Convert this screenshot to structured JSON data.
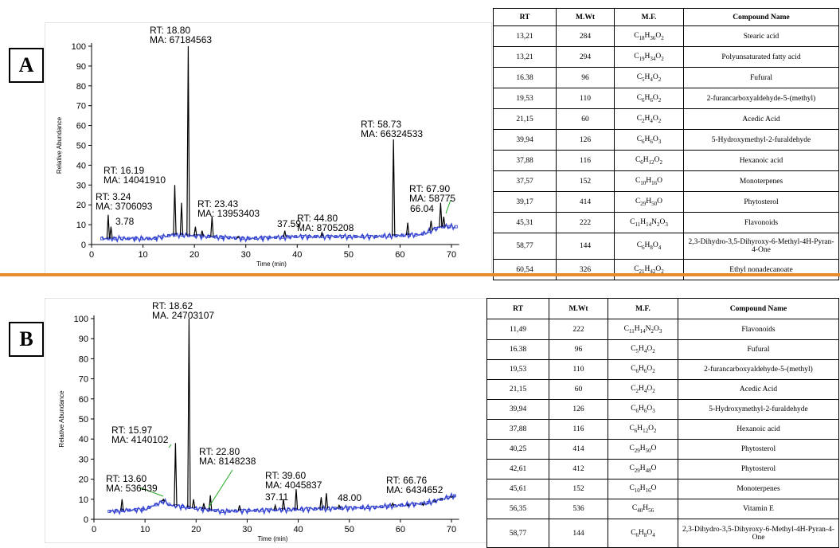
{
  "colors": {
    "trace": "#000000",
    "baseline_marker": "#2233cc",
    "annotation_line": "#22aa22",
    "divider": "#e88a2e"
  },
  "table_headers": [
    "RT",
    "M.Wt",
    "M.F.",
    "Compound Name"
  ],
  "panels": [
    {
      "label": "A",
      "ylabel": "Relative Abundance",
      "xlabel": "Time (min)",
      "xticks": [
        "0",
        "10",
        "20",
        "30",
        "40",
        "50",
        "60",
        "70"
      ],
      "yticks": [
        "0",
        "10",
        "20",
        "30",
        "40",
        "50",
        "60",
        "70",
        "80",
        "90",
        "100"
      ],
      "annotations": [
        {
          "lines": [
            "RT: 18.80",
            "MA: 67184563"
          ]
        },
        {
          "lines": [
            "RT: 58.73",
            "MA: 66324533"
          ]
        },
        {
          "lines": [
            "RT: 16.19",
            "MA: 14041910"
          ]
        },
        {
          "lines": [
            "RT: 67.90",
            "MA: 58775"
          ]
        },
        {
          "lines": [
            "RT: 3.24",
            "MA: 3706093"
          ]
        },
        {
          "lines": [
            "RT: 23.43",
            "MA: 13953403"
          ]
        },
        {
          "lines": [
            "RT: 44.80",
            "MA: 8705208"
          ]
        },
        {
          "lines": [
            "66.04"
          ]
        },
        {
          "lines": [
            "3.78"
          ]
        },
        {
          "lines": [
            "37.59"
          ]
        }
      ],
      "table": [
        {
          "rt": "13,21",
          "mw": "284",
          "mf": [
            [
              "C",
              "18"
            ],
            [
              "H",
              "36"
            ],
            [
              "O",
              "2"
            ]
          ],
          "name": "Stearic acid"
        },
        {
          "rt": "13,21",
          "mw": "294",
          "mf": [
            [
              "C",
              "19"
            ],
            [
              "H",
              "34"
            ],
            [
              "O",
              "2"
            ]
          ],
          "name": "Polyunsaturated fatty acid"
        },
        {
          "rt": "16.38",
          "mw": "96",
          "mf": [
            [
              "C",
              "5"
            ],
            [
              "H",
              "4"
            ],
            [
              "O",
              "2"
            ]
          ],
          "name": "Fufural"
        },
        {
          "rt": "19,53",
          "mw": "110",
          "mf": [
            [
              "C",
              "6"
            ],
            [
              "H",
              "6"
            ],
            [
              "O",
              "2"
            ]
          ],
          "name": "2-furancarboxyaldehyde-5-(methyl)"
        },
        {
          "rt": "21,15",
          "mw": "60",
          "mf": [
            [
              "C",
              "2"
            ],
            [
              "H",
              "4"
            ],
            [
              "O",
              "2"
            ]
          ],
          "name": "Acedic Acid"
        },
        {
          "rt": "39,94",
          "mw": "126",
          "mf": [
            [
              "C",
              "6"
            ],
            [
              "H",
              "6"
            ],
            [
              "O",
              "3"
            ]
          ],
          "name": "5-Hydroxymethyl-2-furaldehyde"
        },
        {
          "rt": "37,88",
          "mw": "116",
          "mf": [
            [
              "C",
              "6"
            ],
            [
              "H",
              "12"
            ],
            [
              "O",
              "2"
            ]
          ],
          "name": "Hexanoic acid"
        },
        {
          "rt": "37,57",
          "mw": "152",
          "mf": [
            [
              "C",
              "10"
            ],
            [
              "H",
              "16"
            ],
            [
              "O",
              ""
            ]
          ],
          "name": "Monoterpenes"
        },
        {
          "rt": "39,17",
          "mw": "414",
          "mf": [
            [
              "C",
              "29"
            ],
            [
              "H",
              "50"
            ],
            [
              "O",
              ""
            ]
          ],
          "name": "Phytosterol"
        },
        {
          "rt": "45,31",
          "mw": "222",
          "mf": [
            [
              "C",
              "11"
            ],
            [
              "H",
              "14"
            ],
            [
              "N",
              "2"
            ],
            [
              "O",
              "3"
            ]
          ],
          "name": "Flavonoids"
        },
        {
          "rt": "58,77",
          "mw": "144",
          "mf": [
            [
              "C",
              "6"
            ],
            [
              "H",
              "8"
            ],
            [
              "O",
              "4"
            ]
          ],
          "name": "2,3-Dihydro-3,5-Dihyroxy-6-Methyl-4H-Pyran-4-One"
        },
        {
          "rt": "60,54",
          "mw": "326",
          "mf": [
            [
              "C",
              "21"
            ],
            [
              "H",
              "42"
            ],
            [
              "O",
              "2"
            ]
          ],
          "name": "Ethyl nonadecanoate"
        }
      ]
    },
    {
      "label": "B",
      "ylabel": "Relative Abundance",
      "xlabel": "Time (min)",
      "xticks": [
        "0",
        "10",
        "20",
        "30",
        "40",
        "50",
        "60",
        "70"
      ],
      "yticks": [
        "0",
        "10",
        "20",
        "30",
        "40",
        "50",
        "60",
        "70",
        "80",
        "90",
        "100"
      ],
      "annotations": [
        {
          "lines": [
            "RT: 18.62",
            "MA. 24703107"
          ]
        },
        {
          "lines": [
            "RT: 15.97",
            "MA: 4140102"
          ]
        },
        {
          "lines": [
            "RT: 22.80",
            "MA: 8148238"
          ]
        },
        {
          "lines": [
            "RT: 39.60",
            "MA: 4045837"
          ]
        },
        {
          "lines": [
            "RT: 13.60",
            "MA: 536439"
          ]
        },
        {
          "lines": [
            "RT: 66.76",
            "MA: 6434652"
          ]
        },
        {
          "lines": [
            "37.11"
          ]
        },
        {
          "lines": [
            "48.00"
          ]
        }
      ],
      "table": [
        {
          "rt": "11,49",
          "mw": "222",
          "mf": [
            [
              "C",
              "11"
            ],
            [
              "H",
              "14"
            ],
            [
              "N",
              "2"
            ],
            [
              "O",
              "3"
            ]
          ],
          "name": "Flavonoids"
        },
        {
          "rt": "16.38",
          "mw": "96",
          "mf": [
            [
              "C",
              "5"
            ],
            [
              "H",
              "4"
            ],
            [
              "O",
              "2"
            ]
          ],
          "name": "Fufural"
        },
        {
          "rt": "19,53",
          "mw": "110",
          "mf": [
            [
              "C",
              "6"
            ],
            [
              "H",
              "6"
            ],
            [
              "O",
              "2"
            ]
          ],
          "name": "2-furancarboxyaldehyde-5-(methyl)"
        },
        {
          "rt": "21,15",
          "mw": "60",
          "mf": [
            [
              "C",
              "2"
            ],
            [
              "H",
              "4"
            ],
            [
              "O",
              "2"
            ]
          ],
          "name": "Acedic Acid"
        },
        {
          "rt": "39,94",
          "mw": "126",
          "mf": [
            [
              "C",
              "6"
            ],
            [
              "H",
              "6"
            ],
            [
              "O",
              "3"
            ]
          ],
          "name": "5-Hydroxymethyl-2-furaldehyde"
        },
        {
          "rt": "37,88",
          "mw": "116",
          "mf": [
            [
              "C",
              "6"
            ],
            [
              "H",
              "12"
            ],
            [
              "O",
              "2"
            ]
          ],
          "name": "Hexanoic acid"
        },
        {
          "rt": "40,25",
          "mw": "414",
          "mf": [
            [
              "C",
              "29"
            ],
            [
              "H",
              "50"
            ],
            [
              "O",
              ""
            ]
          ],
          "name": "Phytosterol"
        },
        {
          "rt": "42,61",
          "mw": "412",
          "mf": [
            [
              "C",
              "29"
            ],
            [
              "H",
              "48"
            ],
            [
              "O",
              ""
            ]
          ],
          "name": "Phytosterol"
        },
        {
          "rt": "45,61",
          "mw": "152",
          "mf": [
            [
              "C",
              "10"
            ],
            [
              "H",
              "16"
            ],
            [
              "O",
              ""
            ]
          ],
          "name": "Monoterpenes"
        },
        {
          "rt": "56,35",
          "mw": "536",
          "mf": [
            [
              "C",
              "40"
            ],
            [
              "H",
              "56"
            ]
          ],
          "name": "Vitamin E"
        },
        {
          "rt": "58,77",
          "mw": "144",
          "mf": [
            [
              "C",
              "6"
            ],
            [
              "H",
              "8"
            ],
            [
              "O",
              "4"
            ]
          ],
          "name": "2,3-Dihydro-3,5-Dihyroxy-6-Methyl-4H-Pyran-4-One"
        }
      ]
    }
  ],
  "chart_data": [
    {
      "type": "line",
      "xlabel": "Time (min)",
      "ylabel": "Relative Abundance",
      "xlim": [
        0,
        72
      ],
      "ylim": [
        0,
        100
      ],
      "peaks": [
        {
          "x": 3.24,
          "y": 15
        },
        {
          "x": 3.78,
          "y": 9
        },
        {
          "x": 16.19,
          "y": 30
        },
        {
          "x": 17.5,
          "y": 21
        },
        {
          "x": 18.8,
          "y": 100
        },
        {
          "x": 20.2,
          "y": 9
        },
        {
          "x": 21.5,
          "y": 7
        },
        {
          "x": 23.43,
          "y": 14
        },
        {
          "x": 28.5,
          "y": 4
        },
        {
          "x": 37.59,
          "y": 7
        },
        {
          "x": 44.8,
          "y": 6
        },
        {
          "x": 58.73,
          "y": 53
        },
        {
          "x": 61.5,
          "y": 11
        },
        {
          "x": 66.04,
          "y": 12
        },
        {
          "x": 67.9,
          "y": 21
        },
        {
          "x": 68.5,
          "y": 14
        }
      ],
      "baseline": [
        {
          "x": 2,
          "y": 3
        },
        {
          "x": 12,
          "y": 3
        },
        {
          "x": 16,
          "y": 5
        },
        {
          "x": 30,
          "y": 3
        },
        {
          "x": 40,
          "y": 4
        },
        {
          "x": 55,
          "y": 4
        },
        {
          "x": 64,
          "y": 5
        },
        {
          "x": 68,
          "y": 9
        },
        {
          "x": 71,
          "y": 9
        }
      ]
    },
    {
      "type": "line",
      "xlabel": "Time (min)",
      "ylabel": "Relative Abundance",
      "xlim": [
        0,
        72
      ],
      "ylim": [
        0,
        100
      ],
      "peaks": [
        {
          "x": 5.5,
          "y": 10
        },
        {
          "x": 13.6,
          "y": 10
        },
        {
          "x": 15.97,
          "y": 38
        },
        {
          "x": 18.62,
          "y": 100
        },
        {
          "x": 19.5,
          "y": 10
        },
        {
          "x": 21.5,
          "y": 8
        },
        {
          "x": 22.8,
          "y": 12
        },
        {
          "x": 28.5,
          "y": 7
        },
        {
          "x": 35.5,
          "y": 7
        },
        {
          "x": 37.11,
          "y": 10
        },
        {
          "x": 39.6,
          "y": 15
        },
        {
          "x": 44.5,
          "y": 11
        },
        {
          "x": 45.5,
          "y": 13
        },
        {
          "x": 48,
          "y": 7
        },
        {
          "x": 58.5,
          "y": 8
        },
        {
          "x": 61.5,
          "y": 7
        },
        {
          "x": 64.5,
          "y": 7
        },
        {
          "x": 66.76,
          "y": 9
        },
        {
          "x": 68,
          "y": 10
        },
        {
          "x": 70,
          "y": 11
        }
      ],
      "baseline": [
        {
          "x": 3,
          "y": 4
        },
        {
          "x": 10,
          "y": 5
        },
        {
          "x": 13.6,
          "y": 9
        },
        {
          "x": 15,
          "y": 7
        },
        {
          "x": 25,
          "y": 4
        },
        {
          "x": 40,
          "y": 5
        },
        {
          "x": 55,
          "y": 6
        },
        {
          "x": 65,
          "y": 8
        },
        {
          "x": 71,
          "y": 12
        }
      ]
    }
  ]
}
